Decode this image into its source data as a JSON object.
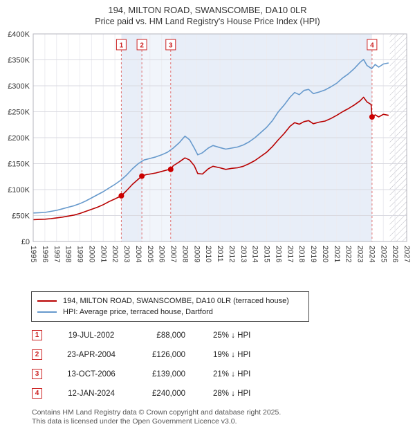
{
  "chart_data": {
    "type": "line",
    "title": "194, MILTON ROAD, SWANSCOMBE, DA10 0LR",
    "subtitle": "Price paid vs. HM Land Registry's House Price Index (HPI)",
    "x_range": [
      1995,
      2027
    ],
    "y_range": [
      0,
      400000
    ],
    "y_ticks": [
      0,
      50000,
      100000,
      150000,
      200000,
      250000,
      300000,
      350000,
      400000
    ],
    "y_tick_labels": [
      "£0",
      "£50K",
      "£100K",
      "£150K",
      "£200K",
      "£250K",
      "£300K",
      "£350K",
      "£400K"
    ],
    "x_ticks": [
      1995,
      1996,
      1997,
      1998,
      1999,
      2000,
      2001,
      2002,
      2003,
      2004,
      2005,
      2006,
      2007,
      2008,
      2009,
      2010,
      2011,
      2012,
      2013,
      2014,
      2015,
      2016,
      2017,
      2018,
      2019,
      2020,
      2021,
      2022,
      2023,
      2024,
      2025,
      2026,
      2027
    ],
    "grid": true,
    "legend_position": "bottom",
    "hatch_start": 2025.55,
    "marker_color": "#cc0000",
    "bands": [
      {
        "from": 2002.55,
        "to": 2004.31,
        "color": "#e8eef8"
      },
      {
        "from": 2004.31,
        "to": 2006.78,
        "color": "#f1f5fb"
      },
      {
        "from": 2006.78,
        "to": 2024.03,
        "color": "#e8eef8"
      }
    ],
    "markers": [
      {
        "label": "1",
        "x": 2002.55,
        "y": 88000
      },
      {
        "label": "2",
        "x": 2004.31,
        "y": 126000
      },
      {
        "label": "3",
        "x": 2006.78,
        "y": 139000
      },
      {
        "label": "4",
        "x": 2024.03,
        "y": 240000
      }
    ],
    "series": [
      {
        "name": "194, MILTON ROAD, SWANSCOMBE, DA10 0LR (terraced house)",
        "color": "#b80000",
        "points": [
          [
            1995,
            42000
          ],
          [
            1995.5,
            42500
          ],
          [
            1996,
            43000
          ],
          [
            1996.5,
            44000
          ],
          [
            1997,
            45500
          ],
          [
            1997.5,
            47000
          ],
          [
            1998,
            49000
          ],
          [
            1998.5,
            51000
          ],
          [
            1999,
            54000
          ],
          [
            1999.5,
            58000
          ],
          [
            2000,
            62000
          ],
          [
            2000.5,
            66000
          ],
          [
            2001,
            71000
          ],
          [
            2001.5,
            77000
          ],
          [
            2002,
            82000
          ],
          [
            2002.55,
            88000
          ],
          [
            2003,
            98000
          ],
          [
            2003.5,
            110000
          ],
          [
            2004,
            120000
          ],
          [
            2004.31,
            126000
          ],
          [
            2004.7,
            129000
          ],
          [
            2005,
            130000
          ],
          [
            2005.5,
            132000
          ],
          [
            2006,
            135000
          ],
          [
            2006.5,
            138000
          ],
          [
            2006.78,
            139000
          ],
          [
            2007,
            146000
          ],
          [
            2007.5,
            153000
          ],
          [
            2008,
            161000
          ],
          [
            2008.4,
            157000
          ],
          [
            2008.8,
            146000
          ],
          [
            2009.1,
            131000
          ],
          [
            2009.5,
            130000
          ],
          [
            2010,
            140000
          ],
          [
            2010.4,
            145000
          ],
          [
            2011,
            142000
          ],
          [
            2011.5,
            139000
          ],
          [
            2012,
            141000
          ],
          [
            2012.5,
            142000
          ],
          [
            2013,
            145000
          ],
          [
            2013.5,
            150000
          ],
          [
            2014,
            156000
          ],
          [
            2014.5,
            164000
          ],
          [
            2015,
            172000
          ],
          [
            2015.5,
            183000
          ],
          [
            2016,
            196000
          ],
          [
            2016.5,
            208000
          ],
          [
            2017,
            222000
          ],
          [
            2017.4,
            229000
          ],
          [
            2017.8,
            226000
          ],
          [
            2018.2,
            231000
          ],
          [
            2018.6,
            233000
          ],
          [
            2019,
            227000
          ],
          [
            2019.5,
            230000
          ],
          [
            2020,
            232000
          ],
          [
            2020.5,
            237000
          ],
          [
            2021,
            243000
          ],
          [
            2021.5,
            250000
          ],
          [
            2022,
            256000
          ],
          [
            2022.5,
            263000
          ],
          [
            2023,
            271000
          ],
          [
            2023.3,
            278000
          ],
          [
            2023.6,
            269000
          ],
          [
            2023.95,
            264000
          ],
          [
            2024.03,
            240000
          ],
          [
            2024.3,
            244000
          ],
          [
            2024.6,
            240000
          ],
          [
            2025,
            245000
          ],
          [
            2025.45,
            243000
          ]
        ]
      },
      {
        "name": "HPI: Average price, terraced house, Dartford",
        "color": "#6699cc",
        "points": [
          [
            1995,
            55000
          ],
          [
            1995.5,
            55500
          ],
          [
            1996,
            56000
          ],
          [
            1996.5,
            58000
          ],
          [
            1997,
            60000
          ],
          [
            1997.5,
            63000
          ],
          [
            1998,
            66000
          ],
          [
            1998.5,
            69000
          ],
          [
            1999,
            73000
          ],
          [
            1999.5,
            78000
          ],
          [
            2000,
            84000
          ],
          [
            2000.5,
            90000
          ],
          [
            2001,
            96000
          ],
          [
            2001.5,
            103000
          ],
          [
            2002,
            110000
          ],
          [
            2002.5,
            118000
          ],
          [
            2003,
            128000
          ],
          [
            2003.5,
            140000
          ],
          [
            2004,
            150000
          ],
          [
            2004.5,
            157000
          ],
          [
            2005,
            160000
          ],
          [
            2005.5,
            163000
          ],
          [
            2006,
            167000
          ],
          [
            2006.5,
            172000
          ],
          [
            2007,
            180000
          ],
          [
            2007.5,
            190000
          ],
          [
            2008,
            203000
          ],
          [
            2008.4,
            196000
          ],
          [
            2008.8,
            180000
          ],
          [
            2009.1,
            167000
          ],
          [
            2009.5,
            171000
          ],
          [
            2010,
            180000
          ],
          [
            2010.4,
            185000
          ],
          [
            2011,
            181000
          ],
          [
            2011.5,
            178000
          ],
          [
            2012,
            180000
          ],
          [
            2012.5,
            182000
          ],
          [
            2013,
            186000
          ],
          [
            2013.5,
            192000
          ],
          [
            2014,
            200000
          ],
          [
            2014.5,
            210000
          ],
          [
            2015,
            220000
          ],
          [
            2015.5,
            233000
          ],
          [
            2016,
            250000
          ],
          [
            2016.5,
            263000
          ],
          [
            2017,
            278000
          ],
          [
            2017.4,
            287000
          ],
          [
            2017.8,
            283000
          ],
          [
            2018.2,
            291000
          ],
          [
            2018.6,
            293000
          ],
          [
            2019,
            285000
          ],
          [
            2019.5,
            288000
          ],
          [
            2020,
            292000
          ],
          [
            2020.5,
            298000
          ],
          [
            2021,
            305000
          ],
          [
            2021.5,
            315000
          ],
          [
            2022,
            323000
          ],
          [
            2022.5,
            333000
          ],
          [
            2023,
            345000
          ],
          [
            2023.3,
            351000
          ],
          [
            2023.6,
            339000
          ],
          [
            2024,
            333000
          ],
          [
            2024.3,
            341000
          ],
          [
            2024.6,
            336000
          ],
          [
            2025,
            342000
          ],
          [
            2025.45,
            344000
          ]
        ]
      }
    ]
  },
  "transactions": [
    {
      "n": "1",
      "date": "19-JUL-2002",
      "price": "£88,000",
      "vs_hpi": "25% ↓ HPI"
    },
    {
      "n": "2",
      "date": "23-APR-2004",
      "price": "£126,000",
      "vs_hpi": "19% ↓ HPI"
    },
    {
      "n": "3",
      "date": "13-OCT-2006",
      "price": "£139,000",
      "vs_hpi": "21% ↓ HPI"
    },
    {
      "n": "4",
      "date": "12-JAN-2024",
      "price": "£240,000",
      "vs_hpi": "28% ↓ HPI"
    }
  ],
  "footer": {
    "line1": "Contains HM Land Registry data © Crown copyright and database right 2025.",
    "line2": "This data is licensed under the Open Government Licence v3.0."
  }
}
